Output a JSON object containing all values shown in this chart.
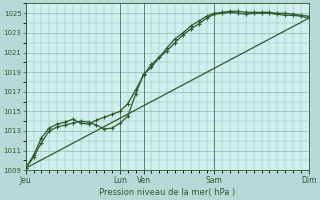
{
  "background_color": "#b8d8d8",
  "plot_bg_color": "#d0eeee",
  "grid_color": "#88bbaa",
  "line_color": "#2d5a2d",
  "title": "Pression niveau de la mer( hPa )",
  "ylim": [
    1009,
    1026
  ],
  "yticks": [
    1009,
    1011,
    1013,
    1015,
    1017,
    1019,
    1021,
    1023,
    1025
  ],
  "xtick_labels": [
    "Jeu",
    "Lun",
    "Ven",
    "Sam",
    "Dim"
  ],
  "xtick_positions": [
    0,
    6,
    7.5,
    12,
    18
  ],
  "xlim": [
    0,
    18
  ],
  "vline_positions": [
    0,
    6,
    7.5,
    12,
    18
  ],
  "series1_x": [
    0,
    0.5,
    1.0,
    1.5,
    2.0,
    2.5,
    3.0,
    3.5,
    4.0,
    4.5,
    5.0,
    5.5,
    6.0,
    6.5,
    7.0,
    7.5,
    8.0,
    8.5,
    9.0,
    9.5,
    10.0,
    10.5,
    11.0,
    11.5,
    12.0,
    12.5,
    13.0,
    13.5,
    14.0,
    14.5,
    15.0,
    15.5,
    16.0,
    16.5,
    17.0,
    17.5,
    18.0
  ],
  "series1_y": [
    1009.2,
    1010.3,
    1011.8,
    1013.0,
    1013.4,
    1013.6,
    1013.8,
    1014.0,
    1013.9,
    1013.6,
    1013.2,
    1013.3,
    1013.8,
    1014.5,
    1016.8,
    1018.8,
    1019.5,
    1020.5,
    1021.5,
    1022.4,
    1023.0,
    1023.7,
    1024.2,
    1024.7,
    1025.0,
    1025.1,
    1025.2,
    1025.2,
    1025.1,
    1025.1,
    1025.1,
    1025.1,
    1025.0,
    1025.0,
    1024.9,
    1024.8,
    1024.7
  ],
  "series2_x": [
    0,
    0.5,
    1.0,
    1.5,
    2.0,
    2.5,
    3.0,
    3.5,
    4.0,
    4.5,
    5.0,
    5.5,
    6.0,
    6.5,
    7.0,
    7.5,
    8.0,
    8.5,
    9.0,
    9.5,
    10.0,
    10.5,
    11.0,
    11.5,
    12.0,
    12.5,
    13.0,
    13.5,
    14.0,
    14.5,
    15.0,
    15.5,
    16.0,
    16.5,
    17.0,
    17.5,
    18.0
  ],
  "series2_y": [
    1009.2,
    1010.5,
    1012.3,
    1013.3,
    1013.7,
    1013.9,
    1014.2,
    1013.8,
    1013.7,
    1014.1,
    1014.4,
    1014.7,
    1015.0,
    1015.8,
    1017.2,
    1018.7,
    1019.8,
    1020.5,
    1021.2,
    1022.0,
    1022.8,
    1023.4,
    1023.9,
    1024.5,
    1024.9,
    1025.0,
    1025.1,
    1025.0,
    1024.9,
    1025.0,
    1025.0,
    1025.0,
    1024.9,
    1024.8,
    1024.8,
    1024.7,
    1024.5
  ],
  "series3_x": [
    0,
    18
  ],
  "series3_y": [
    1009.2,
    1024.5
  ],
  "marker_size": 3.5,
  "linewidth": 0.9
}
